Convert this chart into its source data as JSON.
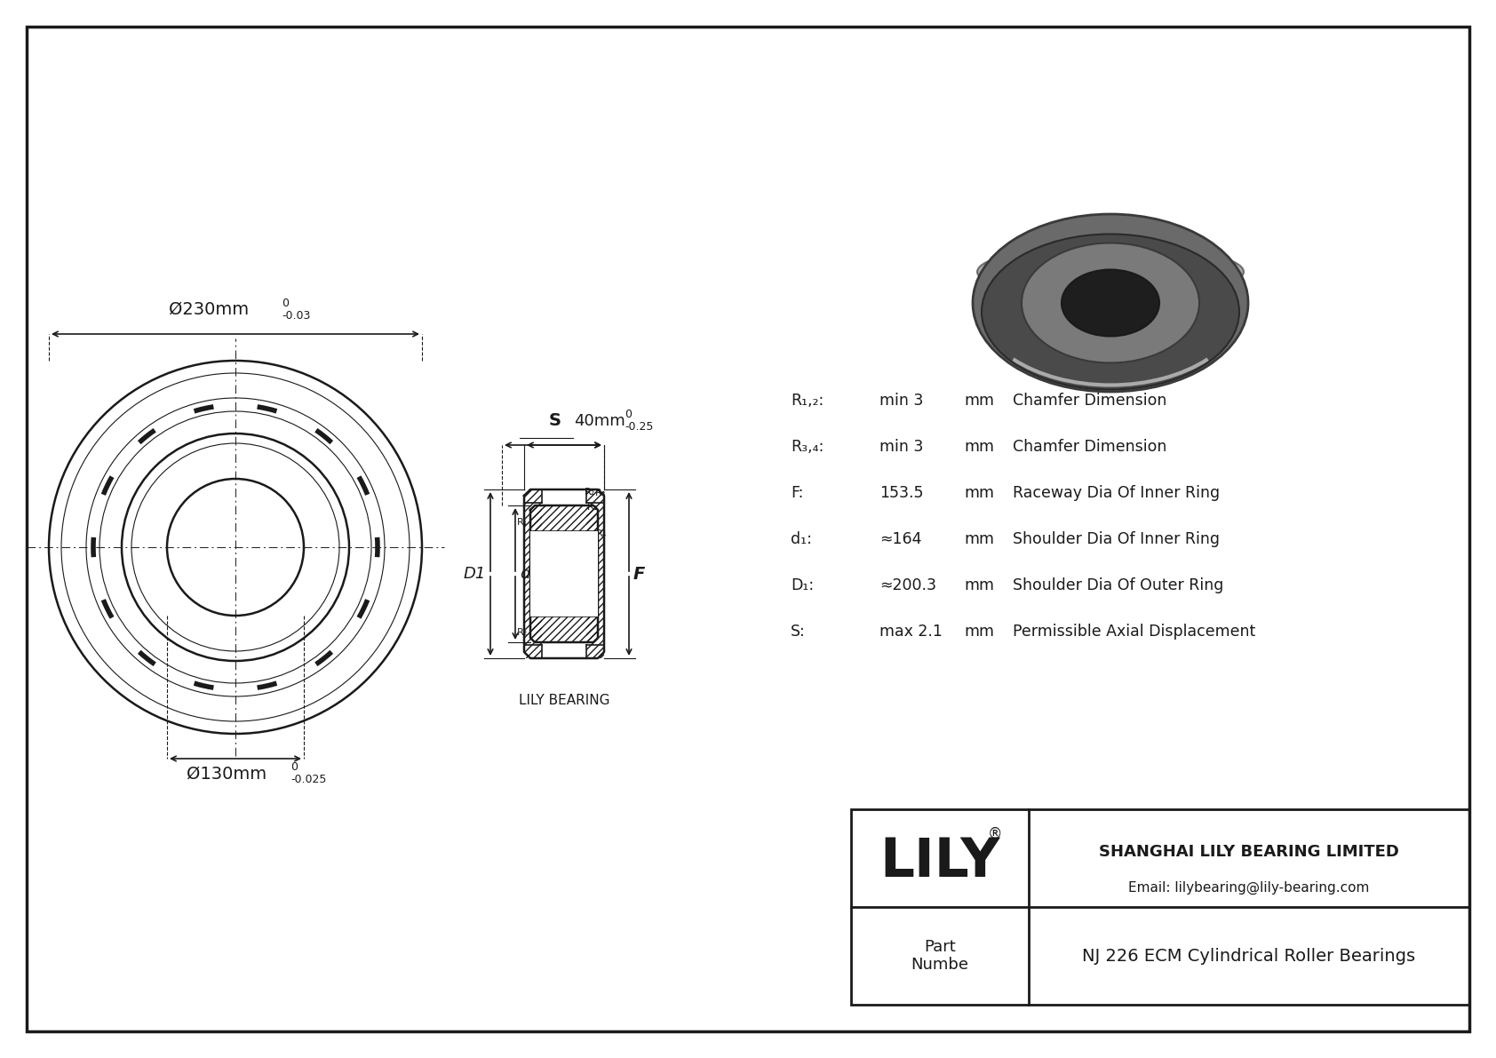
{
  "bg_color": "#ffffff",
  "dc": "#1a1a1a",
  "dim_od": "Ø230mm",
  "dim_od_sup": "0",
  "dim_od_tol": "-0.03",
  "dim_id": "Ø130mm",
  "dim_id_sup": "0",
  "dim_id_tol": "-0.025",
  "dim_w": "40mm",
  "dim_w_sup": "0",
  "dim_w_tol": "-0.25",
  "params": [
    {
      "lbl": "R₁,₂:",
      "val": "min 3",
      "unit": "mm",
      "desc": "Chamfer Dimension"
    },
    {
      "lbl": "R₃,₄:",
      "val": "min 3",
      "unit": "mm",
      "desc": "Chamfer Dimension"
    },
    {
      "lbl": "F:",
      "val": "153.5",
      "unit": "mm",
      "desc": "Raceway Dia Of Inner Ring"
    },
    {
      "lbl": "d₁:",
      "val": "≈164",
      "unit": "mm",
      "desc": "Shoulder Dia Of Inner Ring"
    },
    {
      "lbl": "D₁:",
      "val": "≈200.3",
      "unit": "mm",
      "desc": "Shoulder Dia Of Outer Ring"
    },
    {
      "lbl": "S:",
      "val": "max 2.1",
      "unit": "mm",
      "desc": "Permissible Axial Displacement"
    }
  ],
  "lily_logo": "LILY",
  "company": "SHANGHAI LILY BEARING LIMITED",
  "email": "Email: lilybearing@lily-bearing.com",
  "part_lbl": "Part\nNumbe",
  "part_name": "NJ 226 ECM Cylindrical Roller Bearings",
  "section_lbl": "LILY BEARING"
}
